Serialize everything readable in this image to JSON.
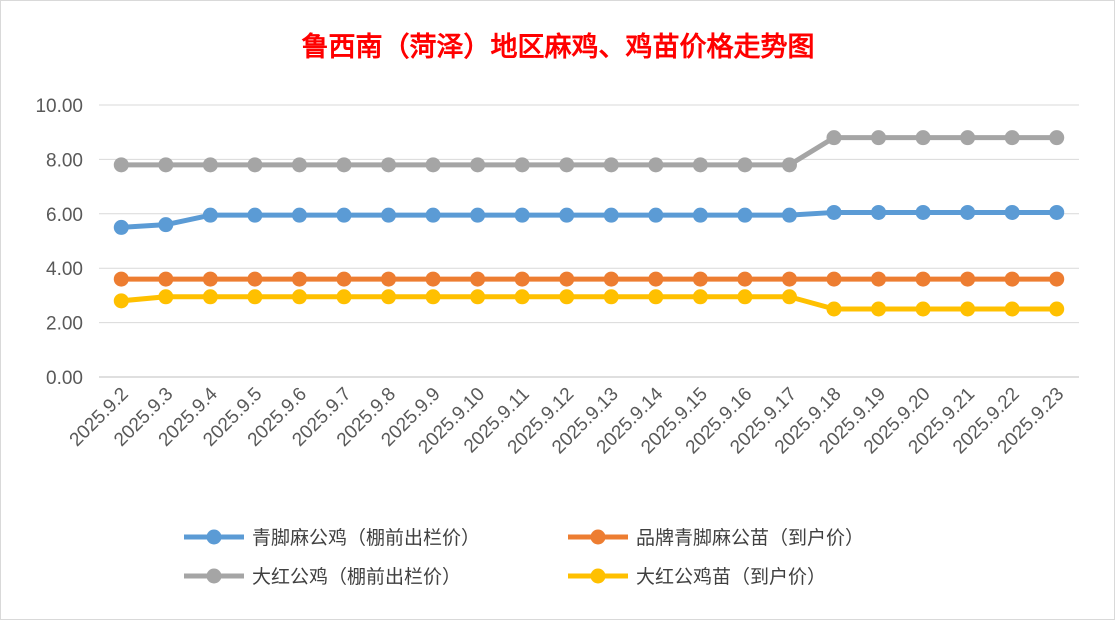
{
  "chart_data": {
    "type": "line",
    "title": "鲁西南（菏泽）地区麻鸡、鸡苗价格走势图",
    "title_color": "#ff0000",
    "xlabel": "",
    "ylabel": "",
    "ylim": [
      0,
      10
    ],
    "y_ticks": [
      "0.00",
      "2.00",
      "4.00",
      "6.00",
      "8.00",
      "10.00"
    ],
    "grid": true,
    "legend_position": "bottom",
    "categories": [
      "2025.9.2",
      "2025.9.3",
      "2025.9.4",
      "2025.9.5",
      "2025.9.6",
      "2025.9.7",
      "2025.9.8",
      "2025.9.9",
      "2025.9.10",
      "2025.9.11",
      "2025.9.12",
      "2025.9.13",
      "2025.9.14",
      "2025.9.15",
      "2025.9.16",
      "2025.9.17",
      "2025.9.18",
      "2025.9.19",
      "2025.9.20",
      "2025.9.21",
      "2025.9.22",
      "2025.9.23"
    ],
    "series": [
      {
        "name": "青脚麻公鸡（棚前出栏价）",
        "color": "#5b9bd5",
        "values": [
          5.5,
          5.6,
          5.95,
          5.95,
          5.95,
          5.95,
          5.95,
          5.95,
          5.95,
          5.95,
          5.95,
          5.95,
          5.95,
          5.95,
          5.95,
          5.95,
          6.05,
          6.05,
          6.05,
          6.05,
          6.05,
          6.05
        ]
      },
      {
        "name": "品牌青脚麻公苗（到户价）",
        "color": "#ed7d31",
        "values": [
          3.6,
          3.6,
          3.6,
          3.6,
          3.6,
          3.6,
          3.6,
          3.6,
          3.6,
          3.6,
          3.6,
          3.6,
          3.6,
          3.6,
          3.6,
          3.6,
          3.6,
          3.6,
          3.6,
          3.6,
          3.6,
          3.6
        ]
      },
      {
        "name": "大红公鸡（棚前出栏价）",
        "color": "#a5a5a5",
        "values": [
          7.8,
          7.8,
          7.8,
          7.8,
          7.8,
          7.8,
          7.8,
          7.8,
          7.8,
          7.8,
          7.8,
          7.8,
          7.8,
          7.8,
          7.8,
          7.8,
          8.8,
          8.8,
          8.8,
          8.8,
          8.8,
          8.8
        ]
      },
      {
        "name": "大红公鸡苗（到户价）",
        "color": "#ffc000",
        "values": [
          2.8,
          2.95,
          2.95,
          2.95,
          2.95,
          2.95,
          2.95,
          2.95,
          2.95,
          2.95,
          2.95,
          2.95,
          2.95,
          2.95,
          2.95,
          2.95,
          2.5,
          2.5,
          2.5,
          2.5,
          2.5,
          2.5
        ]
      }
    ]
  }
}
